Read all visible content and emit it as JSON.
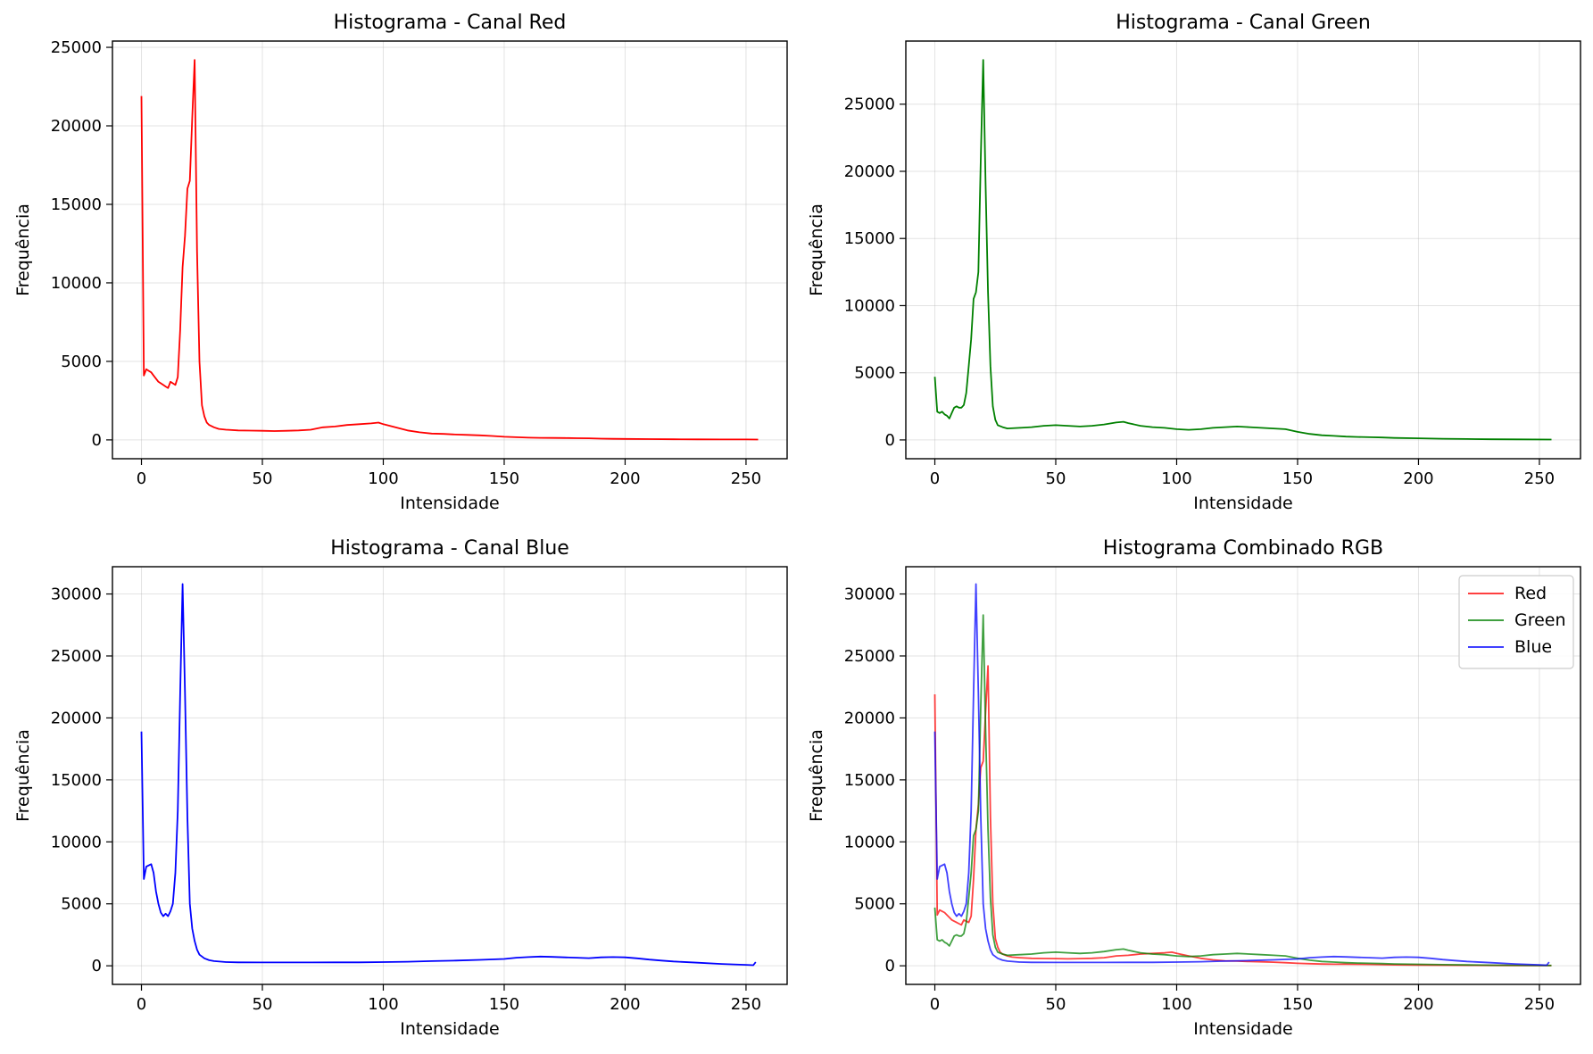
{
  "chart_data": [
    {
      "type": "line",
      "title": "Histograma - Canal Red",
      "xlabel": "Intensidade",
      "ylabel": "Frequência",
      "xlim": [
        -12,
        267
      ],
      "ylim": [
        -1200,
        25400
      ],
      "xticks": [
        0,
        50,
        100,
        150,
        200,
        250
      ],
      "yticks": [
        0,
        5000,
        10000,
        15000,
        20000,
        25000
      ],
      "grid": true,
      "series": [
        {
          "color": "#ff0000",
          "id": "red"
        }
      ]
    },
    {
      "type": "line",
      "title": "Histograma - Canal Green",
      "xlabel": "Intensidade",
      "ylabel": "Frequência",
      "xlim": [
        -12,
        267
      ],
      "ylim": [
        -1400,
        29700
      ],
      "xticks": [
        0,
        50,
        100,
        150,
        200,
        250
      ],
      "yticks": [
        0,
        5000,
        10000,
        15000,
        20000,
        25000
      ],
      "grid": true,
      "series": [
        {
          "color": "#008000",
          "id": "green"
        }
      ]
    },
    {
      "type": "line",
      "title": "Histograma - Canal Blue",
      "xlabel": "Intensidade",
      "ylabel": "Frequência",
      "xlim": [
        -12,
        267
      ],
      "ylim": [
        -1500,
        32200
      ],
      "xticks": [
        0,
        50,
        100,
        150,
        200,
        250
      ],
      "yticks": [
        0,
        5000,
        10000,
        15000,
        20000,
        25000,
        30000
      ],
      "grid": true,
      "series": [
        {
          "color": "#0000ff",
          "id": "blue"
        }
      ]
    },
    {
      "type": "line",
      "title": "Histograma Combinado RGB",
      "xlabel": "Intensidade",
      "ylabel": "Frequência",
      "xlim": [
        -12,
        267
      ],
      "ylim": [
        -1500,
        32200
      ],
      "xticks": [
        0,
        50,
        100,
        150,
        200,
        250
      ],
      "yticks": [
        0,
        5000,
        10000,
        15000,
        20000,
        25000,
        30000
      ],
      "grid": true,
      "legend": "top-right",
      "series": [
        {
          "name": "Red",
          "color": "#ff0000",
          "id": "red",
          "alpha": 0.75
        },
        {
          "name": "Green",
          "color": "#008000",
          "id": "green",
          "alpha": 0.75
        },
        {
          "name": "Blue",
          "color": "#0000ff",
          "id": "blue",
          "alpha": 0.75
        }
      ]
    }
  ],
  "histograms": {
    "red": [
      [
        0,
        21900
      ],
      [
        1,
        4100
      ],
      [
        2,
        4500
      ],
      [
        3,
        4400
      ],
      [
        4,
        4300
      ],
      [
        5,
        4100
      ],
      [
        6,
        3900
      ],
      [
        7,
        3700
      ],
      [
        8,
        3600
      ],
      [
        9,
        3500
      ],
      [
        10,
        3400
      ],
      [
        11,
        3300
      ],
      [
        12,
        3700
      ],
      [
        13,
        3600
      ],
      [
        14,
        3500
      ],
      [
        15,
        4000
      ],
      [
        16,
        7000
      ],
      [
        17,
        11000
      ],
      [
        18,
        13000
      ],
      [
        19,
        16000
      ],
      [
        20,
        16500
      ],
      [
        21,
        20500
      ],
      [
        22,
        24200
      ],
      [
        23,
        12000
      ],
      [
        24,
        5000
      ],
      [
        25,
        2200
      ],
      [
        26,
        1500
      ],
      [
        27,
        1100
      ],
      [
        28,
        950
      ],
      [
        30,
        800
      ],
      [
        32,
        700
      ],
      [
        35,
        650
      ],
      [
        40,
        600
      ],
      [
        45,
        590
      ],
      [
        50,
        580
      ],
      [
        55,
        560
      ],
      [
        60,
        580
      ],
      [
        65,
        600
      ],
      [
        70,
        650
      ],
      [
        75,
        800
      ],
      [
        80,
        850
      ],
      [
        85,
        950
      ],
      [
        90,
        1000
      ],
      [
        95,
        1050
      ],
      [
        98,
        1100
      ],
      [
        100,
        1000
      ],
      [
        105,
        800
      ],
      [
        110,
        600
      ],
      [
        115,
        480
      ],
      [
        120,
        400
      ],
      [
        125,
        380
      ],
      [
        130,
        340
      ],
      [
        135,
        320
      ],
      [
        140,
        290
      ],
      [
        145,
        250
      ],
      [
        150,
        200
      ],
      [
        155,
        170
      ],
      [
        160,
        140
      ],
      [
        165,
        130
      ],
      [
        170,
        125
      ],
      [
        175,
        120
      ],
      [
        180,
        110
      ],
      [
        185,
        100
      ],
      [
        190,
        80
      ],
      [
        195,
        70
      ],
      [
        200,
        60
      ],
      [
        210,
        50
      ],
      [
        220,
        40
      ],
      [
        230,
        35
      ],
      [
        240,
        30
      ],
      [
        250,
        25
      ],
      [
        255,
        20
      ]
    ],
    "green": [
      [
        0,
        4700
      ],
      [
        1,
        2100
      ],
      [
        2,
        2000
      ],
      [
        3,
        2100
      ],
      [
        4,
        1900
      ],
      [
        5,
        1800
      ],
      [
        6,
        1600
      ],
      [
        7,
        2000
      ],
      [
        8,
        2400
      ],
      [
        9,
        2500
      ],
      [
        10,
        2400
      ],
      [
        11,
        2400
      ],
      [
        12,
        2600
      ],
      [
        13,
        3500
      ],
      [
        14,
        5500
      ],
      [
        15,
        7500
      ],
      [
        16,
        10500
      ],
      [
        17,
        11000
      ],
      [
        18,
        12500
      ],
      [
        19,
        21000
      ],
      [
        20,
        28300
      ],
      [
        21,
        19000
      ],
      [
        22,
        11000
      ],
      [
        23,
        5500
      ],
      [
        24,
        2500
      ],
      [
        25,
        1500
      ],
      [
        26,
        1100
      ],
      [
        28,
        950
      ],
      [
        30,
        850
      ],
      [
        35,
        900
      ],
      [
        40,
        950
      ],
      [
        45,
        1050
      ],
      [
        50,
        1100
      ],
      [
        55,
        1050
      ],
      [
        60,
        1000
      ],
      [
        65,
        1050
      ],
      [
        70,
        1150
      ],
      [
        75,
        1300
      ],
      [
        78,
        1350
      ],
      [
        80,
        1250
      ],
      [
        85,
        1050
      ],
      [
        90,
        950
      ],
      [
        95,
        900
      ],
      [
        100,
        800
      ],
      [
        105,
        750
      ],
      [
        110,
        800
      ],
      [
        115,
        900
      ],
      [
        120,
        950
      ],
      [
        125,
        1000
      ],
      [
        130,
        950
      ],
      [
        135,
        900
      ],
      [
        140,
        850
      ],
      [
        145,
        800
      ],
      [
        150,
        600
      ],
      [
        155,
        450
      ],
      [
        160,
        350
      ],
      [
        165,
        300
      ],
      [
        170,
        250
      ],
      [
        175,
        220
      ],
      [
        180,
        200
      ],
      [
        185,
        180
      ],
      [
        190,
        150
      ],
      [
        200,
        120
      ],
      [
        210,
        90
      ],
      [
        220,
        70
      ],
      [
        230,
        50
      ],
      [
        240,
        40
      ],
      [
        255,
        30
      ]
    ],
    "blue": [
      [
        0,
        18900
      ],
      [
        1,
        7000
      ],
      [
        2,
        8000
      ],
      [
        3,
        8100
      ],
      [
        4,
        8200
      ],
      [
        5,
        7500
      ],
      [
        6,
        6000
      ],
      [
        7,
        5000
      ],
      [
        8,
        4300
      ],
      [
        9,
        4000
      ],
      [
        10,
        4200
      ],
      [
        11,
        4000
      ],
      [
        12,
        4400
      ],
      [
        13,
        5000
      ],
      [
        14,
        7500
      ],
      [
        15,
        12500
      ],
      [
        16,
        22000
      ],
      [
        17,
        30800
      ],
      [
        18,
        22000
      ],
      [
        19,
        12000
      ],
      [
        20,
        5000
      ],
      [
        21,
        3000
      ],
      [
        22,
        2000
      ],
      [
        23,
        1300
      ],
      [
        24,
        900
      ],
      [
        26,
        600
      ],
      [
        28,
        450
      ],
      [
        30,
        380
      ],
      [
        35,
        300
      ],
      [
        40,
        280
      ],
      [
        50,
        270
      ],
      [
        60,
        270
      ],
      [
        70,
        270
      ],
      [
        80,
        280
      ],
      [
        90,
        280
      ],
      [
        100,
        300
      ],
      [
        110,
        330
      ],
      [
        120,
        380
      ],
      [
        130,
        420
      ],
      [
        140,
        480
      ],
      [
        150,
        550
      ],
      [
        155,
        650
      ],
      [
        160,
        700
      ],
      [
        165,
        750
      ],
      [
        170,
        720
      ],
      [
        175,
        680
      ],
      [
        180,
        650
      ],
      [
        185,
        620
      ],
      [
        190,
        680
      ],
      [
        195,
        700
      ],
      [
        200,
        680
      ],
      [
        205,
        600
      ],
      [
        210,
        500
      ],
      [
        215,
        420
      ],
      [
        220,
        350
      ],
      [
        230,
        250
      ],
      [
        240,
        150
      ],
      [
        250,
        80
      ],
      [
        253,
        50
      ],
      [
        254,
        300
      ]
    ]
  }
}
